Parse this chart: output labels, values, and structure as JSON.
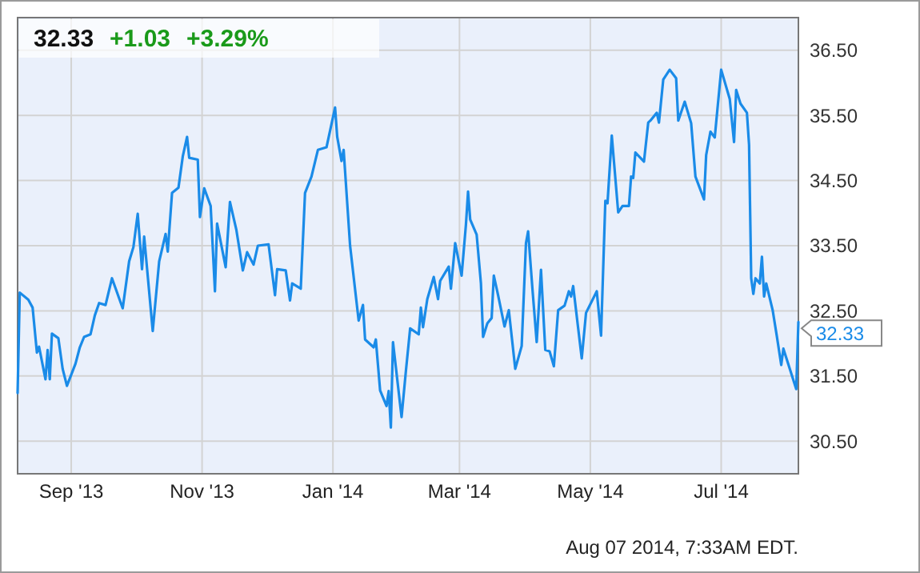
{
  "chart_data": {
    "type": "line",
    "title": "32.33",
    "annotations": [
      "+1.03",
      "+3.29%",
      "Aug 07 2014, 7:33AM EDT.",
      {
        "text": "32.33",
        "x": "2014-08-06",
        "y": 32.33
      }
    ],
    "xlim": [
      "2013-08-07",
      "2014-08-06"
    ],
    "xticks": [
      {
        "value": "2013-09-01",
        "label": "Sep '13"
      },
      {
        "value": "2013-11-01",
        "label": "Nov '13"
      },
      {
        "value": "2014-01-01",
        "label": "Jan '14"
      },
      {
        "value": "2014-03-01",
        "label": "Mar '14"
      },
      {
        "value": "2014-05-01",
        "label": "May '14"
      },
      {
        "value": "2014-07-01",
        "label": "Jul '14"
      }
    ],
    "ylim": [
      30,
      37
    ],
    "yticks": [
      {
        "value": 30.5,
        "label": "30.50"
      },
      {
        "value": 31.5,
        "label": "31.50"
      },
      {
        "value": 32.5,
        "label": "32.50"
      },
      {
        "value": 33.5,
        "label": "33.50"
      },
      {
        "value": 34.5,
        "label": "34.50"
      },
      {
        "value": 35.5,
        "label": "35.50"
      },
      {
        "value": 36.5,
        "label": "36.50"
      }
    ],
    "grid": true,
    "marker": "none",
    "line_style": "solid",
    "x": [
      "2013-08-07",
      "2013-08-08",
      "2013-08-12",
      "2013-08-14",
      "2013-08-16",
      "2013-08-17",
      "2013-08-20",
      "2013-08-21",
      "2013-08-22",
      "2013-08-23",
      "2013-08-26",
      "2013-08-28",
      "2013-08-30",
      "2013-09-03",
      "2013-09-05",
      "2013-09-07",
      "2013-09-10",
      "2013-09-12",
      "2013-09-14",
      "2013-09-17",
      "2013-09-20",
      "2013-09-25",
      "2013-09-28",
      "2013-09-30",
      "2013-10-02",
      "2013-10-04",
      "2013-10-05",
      "2013-10-09",
      "2013-10-12",
      "2013-10-15",
      "2013-10-16",
      "2013-10-18",
      "2013-10-21",
      "2013-10-23",
      "2013-10-25",
      "2013-10-26",
      "2013-10-30",
      "2013-10-31",
      "2013-11-02",
      "2013-11-05",
      "2013-11-07",
      "2013-11-08",
      "2013-11-12",
      "2013-11-14",
      "2013-11-17",
      "2013-11-20",
      "2013-11-22",
      "2013-11-25",
      "2013-11-27",
      "2013-12-02",
      "2013-12-05",
      "2013-12-06",
      "2013-12-10",
      "2013-12-12",
      "2013-12-13",
      "2013-12-17",
      "2013-12-19",
      "2013-12-22",
      "2013-12-25",
      "2013-12-29",
      "2014-01-02",
      "2014-01-03",
      "2014-01-05",
      "2014-01-06",
      "2014-01-09",
      "2014-01-13",
      "2014-01-15",
      "2014-01-16",
      "2014-01-20",
      "2014-01-21",
      "2014-01-23",
      "2014-01-26",
      "2014-01-27",
      "2014-01-28",
      "2014-01-29",
      "2014-02-02",
      "2014-02-04",
      "2014-02-06",
      "2014-02-10",
      "2014-02-11",
      "2014-02-12",
      "2014-02-14",
      "2014-02-17",
      "2014-02-19",
      "2014-02-20",
      "2014-02-24",
      "2014-02-25",
      "2014-02-27",
      "2014-03-02",
      "2014-03-04",
      "2014-03-05",
      "2014-03-06",
      "2014-03-09",
      "2014-03-11",
      "2014-03-12",
      "2014-03-14",
      "2014-03-16",
      "2014-03-17",
      "2014-03-19",
      "2014-03-22",
      "2014-03-24",
      "2014-03-27",
      "2014-03-30",
      "2014-04-01",
      "2014-04-02",
      "2014-04-04",
      "2014-04-06",
      "2014-04-08",
      "2014-04-10",
      "2014-04-12",
      "2014-04-14",
      "2014-04-16",
      "2014-04-19",
      "2014-04-21",
      "2014-04-22",
      "2014-04-23",
      "2014-04-27",
      "2014-04-29",
      "2014-05-04",
      "2014-05-06",
      "2014-05-08",
      "2014-05-09",
      "2014-05-11",
      "2014-05-14",
      "2014-05-16",
      "2014-05-19",
      "2014-05-20",
      "2014-05-21",
      "2014-05-22",
      "2014-05-26",
      "2014-05-28",
      "2014-05-29",
      "2014-06-01",
      "2014-06-02",
      "2014-06-04",
      "2014-06-07",
      "2014-06-10",
      "2014-06-11",
      "2014-06-14",
      "2014-06-17",
      "2014-06-19",
      "2014-06-23",
      "2014-06-24",
      "2014-06-26",
      "2014-06-28",
      "2014-07-01",
      "2014-07-05",
      "2014-07-07",
      "2014-07-08",
      "2014-07-10",
      "2014-07-13",
      "2014-07-14",
      "2014-07-15",
      "2014-07-16",
      "2014-07-17",
      "2014-07-19",
      "2014-07-20",
      "2014-07-21",
      "2014-07-22",
      "2014-07-25",
      "2014-07-27",
      "2014-07-29",
      "2014-07-30",
      "2014-08-05",
      "2014-08-06"
    ],
    "series": [
      {
        "color": "#1a8be8",
        "values": [
          31.24,
          32.78,
          32.67,
          32.55,
          31.86,
          31.95,
          31.45,
          31.9,
          31.45,
          32.15,
          32.08,
          31.61,
          31.35,
          31.69,
          31.94,
          32.1,
          32.14,
          32.43,
          32.62,
          32.59,
          33.0,
          32.54,
          33.26,
          33.48,
          33.99,
          33.14,
          33.64,
          32.19,
          33.26,
          33.68,
          33.41,
          34.31,
          34.39,
          34.87,
          35.17,
          34.85,
          34.82,
          33.94,
          34.38,
          34.11,
          32.8,
          33.84,
          33.17,
          34.17,
          33.74,
          33.12,
          33.4,
          33.21,
          33.5,
          33.52,
          32.74,
          33.14,
          33.12,
          32.66,
          32.92,
          32.84,
          34.31,
          34.56,
          34.97,
          35.01,
          35.62,
          35.17,
          34.8,
          34.97,
          33.5,
          32.35,
          32.59,
          32.06,
          31.94,
          32.06,
          31.28,
          31.04,
          31.27,
          30.71,
          32.02,
          30.87,
          31.57,
          32.23,
          32.14,
          32.55,
          32.25,
          32.68,
          33.02,
          32.68,
          32.96,
          33.18,
          32.84,
          33.54,
          33.04,
          33.82,
          34.33,
          33.9,
          33.67,
          32.92,
          32.1,
          32.31,
          32.39,
          33.04,
          32.74,
          32.26,
          32.51,
          31.61,
          31.96,
          33.54,
          33.72,
          32.84,
          32.02,
          33.13,
          31.9,
          31.88,
          31.65,
          32.51,
          32.58,
          32.8,
          32.72,
          32.88,
          31.77,
          32.47,
          32.8,
          32.12,
          34.19,
          34.15,
          35.19,
          34.01,
          34.11,
          34.11,
          34.56,
          34.54,
          34.93,
          34.79,
          35.39,
          35.42,
          35.54,
          35.39,
          36.05,
          36.2,
          36.07,
          35.42,
          35.71,
          35.38,
          34.56,
          34.21,
          34.89,
          35.25,
          35.16,
          36.2,
          35.75,
          35.09,
          35.89,
          35.68,
          35.54,
          35.05,
          33.0,
          32.76,
          33.0,
          32.92,
          33.33,
          32.72,
          32.92,
          32.51,
          32.1,
          31.67,
          31.92,
          31.3,
          32.33
        ]
      }
    ]
  }
}
